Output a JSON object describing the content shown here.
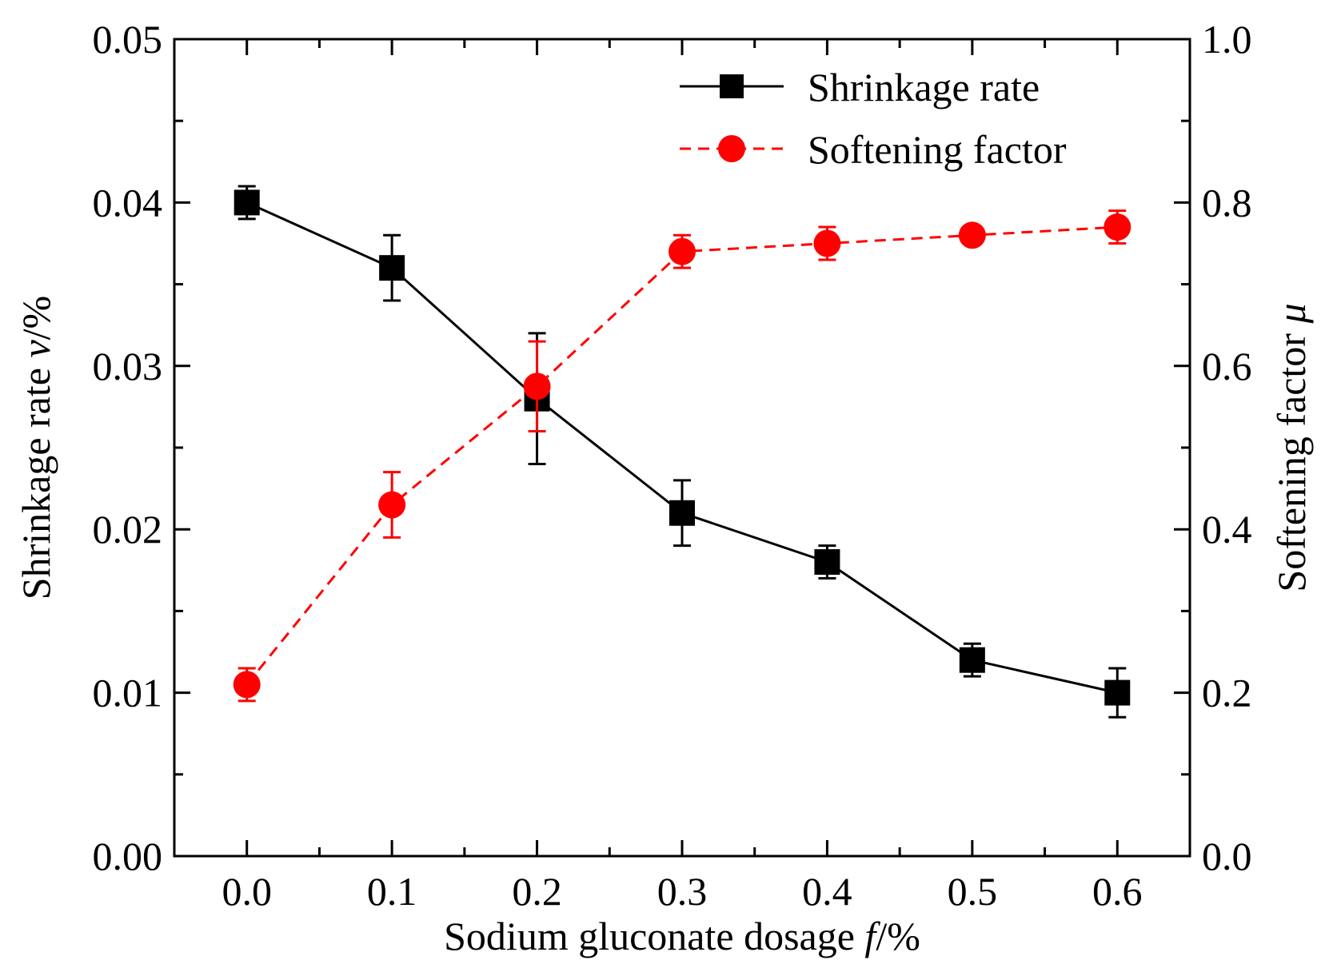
{
  "chart_data": {
    "type": "line",
    "x": [
      0.0,
      0.1,
      0.2,
      0.3,
      0.4,
      0.5,
      0.6
    ],
    "x_tick_labels": [
      "0.0",
      "0.1",
      "0.2",
      "0.3",
      "0.4",
      "0.5",
      "0.6"
    ],
    "xlim": [
      -0.05,
      0.65
    ],
    "xlabel": {
      "main": "Sodium gluconate dosage ",
      "var": "f",
      "unit": "/%"
    },
    "y_left": {
      "label": {
        "main": "Shrinkage rate ",
        "var": "v",
        "unit": "/%"
      },
      "lim": [
        0.0,
        0.05
      ],
      "ticks": [
        0.0,
        0.01,
        0.02,
        0.03,
        0.04,
        0.05
      ],
      "tick_labels": [
        "0.00",
        "0.01",
        "0.02",
        "0.03",
        "0.04",
        "0.05"
      ]
    },
    "y_right": {
      "label": {
        "main": "Softening factor ",
        "var": "μ"
      },
      "lim": [
        0.0,
        1.0
      ],
      "ticks": [
        0.0,
        0.2,
        0.4,
        0.6,
        0.8,
        1.0
      ],
      "tick_labels": [
        "0.0",
        "0.2",
        "0.4",
        "0.6",
        "0.8",
        "1.0"
      ]
    },
    "series": [
      {
        "name": "Shrinkage rate",
        "axis": "left",
        "color": "#000000",
        "marker": "square",
        "line": "solid",
        "values": [
          0.04,
          0.036,
          0.028,
          0.021,
          0.018,
          0.012,
          0.01
        ],
        "errors": [
          0.001,
          0.002,
          0.004,
          0.002,
          0.001,
          0.001,
          0.0015
        ]
      },
      {
        "name": "Softening factor",
        "axis": "right",
        "color": "#ff0000",
        "marker": "circle",
        "line": "dashed",
        "values": [
          0.21,
          0.43,
          0.575,
          0.74,
          0.75,
          0.76,
          0.77
        ],
        "errors": [
          0.02,
          0.04,
          0.055,
          0.02,
          0.02,
          0.0,
          0.02
        ]
      }
    ],
    "legend_position": "top-right"
  }
}
